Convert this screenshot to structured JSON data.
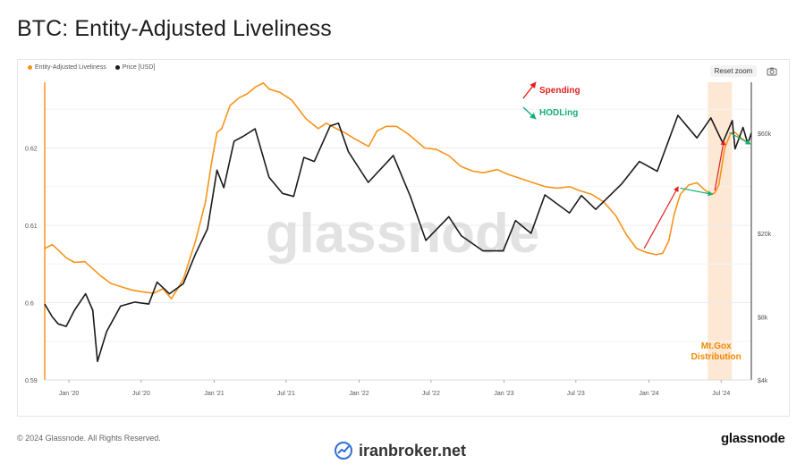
{
  "page": {
    "title": "BTC: Entity-Adjusted Liveliness",
    "footer_copyright": "© 2024 Glassnode. All Rights Reserved.",
    "footer_brand": "glassnode",
    "watermark_text": "glassnode",
    "bottom_logo_text": "iranbroker.net",
    "reset_zoom_label": "Reset zoom"
  },
  "colors": {
    "liveliness": "#f7931a",
    "price": "#1a1a1a",
    "spending": "#e41e1e",
    "hodling": "#13b07a",
    "highlight": "#fde2cc",
    "mtgox": "#f08a00"
  },
  "chart_data": {
    "type": "line",
    "title": "BTC: Entity-Adjusted Liveliness",
    "legend": [
      {
        "name": "Entity-Adjusted Liveliness",
        "color": "#f7931a"
      },
      {
        "name": "Price [USD]",
        "color": "#1a1a1a"
      }
    ],
    "legend_position": "top-left",
    "grid": true,
    "x_ticks": [
      "Jan '20",
      "Jul '20",
      "Jan '21",
      "Jul '21",
      "Jan '22",
      "Jul '22",
      "Jan '23",
      "Jul '23",
      "Jan '24",
      "Jul '24"
    ],
    "x_range": [
      "2019-11-01",
      "2024-09-15"
    ],
    "y_left": {
      "ticks": [
        "0.59",
        "0.6",
        "0.61",
        "0.62"
      ],
      "range": [
        0.59,
        0.6285
      ]
    },
    "y_right": {
      "ticks": [
        "$4k",
        "$8k",
        "$20k",
        "$60k"
      ],
      "scale": "log",
      "range": [
        4000,
        105000
      ]
    },
    "series": [
      {
        "name": "Entity-Adjusted Liveliness",
        "axis": "left",
        "points": [
          [
            "2019-11-01",
            0.607
          ],
          [
            "2019-11-20",
            0.6075
          ],
          [
            "2019-12-05",
            0.6068
          ],
          [
            "2019-12-25",
            0.6058
          ],
          [
            "2020-01-15",
            0.6052
          ],
          [
            "2020-02-10",
            0.6053
          ],
          [
            "2020-03-05",
            0.6042
          ],
          [
            "2020-03-20",
            0.6035
          ],
          [
            "2020-04-15",
            0.6025
          ],
          [
            "2020-05-15",
            0.602
          ],
          [
            "2020-06-10",
            0.6016
          ],
          [
            "2020-07-05",
            0.6014
          ],
          [
            "2020-08-01",
            0.6012
          ],
          [
            "2020-08-25",
            0.6018
          ],
          [
            "2020-09-15",
            0.6005
          ],
          [
            "2020-10-15",
            0.603
          ],
          [
            "2020-11-15",
            0.608
          ],
          [
            "2020-12-10",
            0.613
          ],
          [
            "2020-12-25",
            0.618
          ],
          [
            "2021-01-08",
            0.622
          ],
          [
            "2021-01-20",
            0.6225
          ],
          [
            "2021-02-10",
            0.6255
          ],
          [
            "2021-03-05",
            0.6265
          ],
          [
            "2021-03-25",
            0.627
          ],
          [
            "2021-04-15",
            0.6279
          ],
          [
            "2021-05-05",
            0.6284
          ],
          [
            "2021-05-20",
            0.6276
          ],
          [
            "2021-06-15",
            0.6272
          ],
          [
            "2021-07-15",
            0.6262
          ],
          [
            "2021-08-20",
            0.6238
          ],
          [
            "2021-09-20",
            0.6225
          ],
          [
            "2021-10-10",
            0.6232
          ],
          [
            "2021-11-05",
            0.6225
          ],
          [
            "2021-11-25",
            0.622
          ],
          [
            "2021-12-20",
            0.6212
          ],
          [
            "2022-01-25",
            0.6202
          ],
          [
            "2022-02-15",
            0.6222
          ],
          [
            "2022-03-10",
            0.6228
          ],
          [
            "2022-04-05",
            0.6228
          ],
          [
            "2022-05-05",
            0.6218
          ],
          [
            "2022-06-15",
            0.62
          ],
          [
            "2022-07-15",
            0.6198
          ],
          [
            "2022-08-15",
            0.619
          ],
          [
            "2022-09-15",
            0.6176
          ],
          [
            "2022-10-15",
            0.617
          ],
          [
            "2022-11-10",
            0.6168
          ],
          [
            "2022-12-15",
            0.6172
          ],
          [
            "2023-01-10",
            0.6166
          ],
          [
            "2023-02-15",
            0.616
          ],
          [
            "2023-03-15",
            0.6155
          ],
          [
            "2023-04-15",
            0.615
          ],
          [
            "2023-05-15",
            0.6148
          ],
          [
            "2023-06-15",
            0.615
          ],
          [
            "2023-07-10",
            0.6145
          ],
          [
            "2023-08-10",
            0.614
          ],
          [
            "2023-09-10",
            0.613
          ],
          [
            "2023-10-10",
            0.6112
          ],
          [
            "2023-11-05",
            0.6088
          ],
          [
            "2023-12-01",
            0.607
          ],
          [
            "2023-12-25",
            0.6065
          ],
          [
            "2024-01-20",
            0.6062
          ],
          [
            "2024-02-05",
            0.6064
          ],
          [
            "2024-02-20",
            0.608
          ],
          [
            "2024-03-05",
            0.6115
          ],
          [
            "2024-03-20",
            0.614
          ],
          [
            "2024-04-10",
            0.6152
          ],
          [
            "2024-05-01",
            0.6155
          ],
          [
            "2024-05-20",
            0.6146
          ],
          [
            "2024-06-05",
            0.614
          ],
          [
            "2024-06-15",
            0.6142
          ],
          [
            "2024-06-25",
            0.6152
          ],
          [
            "2024-07-10",
            0.62
          ],
          [
            "2024-07-25",
            0.6219
          ],
          [
            "2024-08-05",
            0.622
          ],
          [
            "2024-08-20",
            0.6213
          ],
          [
            "2024-09-05",
            0.6207
          ],
          [
            "2024-09-15",
            0.6205
          ]
        ]
      },
      {
        "name": "Price [USD]",
        "axis": "right",
        "points": [
          [
            "2019-11-01",
            9200
          ],
          [
            "2019-11-20",
            8000
          ],
          [
            "2019-12-05",
            7400
          ],
          [
            "2019-12-25",
            7200
          ],
          [
            "2020-01-15",
            8600
          ],
          [
            "2020-02-12",
            10300
          ],
          [
            "2020-03-01",
            8600
          ],
          [
            "2020-03-13",
            4900
          ],
          [
            "2020-04-05",
            6800
          ],
          [
            "2020-05-10",
            9000
          ],
          [
            "2020-06-15",
            9400
          ],
          [
            "2020-07-20",
            9200
          ],
          [
            "2020-08-10",
            11700
          ],
          [
            "2020-09-10",
            10300
          ],
          [
            "2020-10-15",
            11500
          ],
          [
            "2020-11-15",
            16000
          ],
          [
            "2020-12-15",
            21000
          ],
          [
            "2021-01-08",
            40000
          ],
          [
            "2021-01-25",
            33000
          ],
          [
            "2021-02-20",
            55000
          ],
          [
            "2021-03-15",
            58000
          ],
          [
            "2021-04-14",
            63000
          ],
          [
            "2021-05-19",
            37000
          ],
          [
            "2021-06-22",
            31000
          ],
          [
            "2021-07-20",
            30000
          ],
          [
            "2021-08-15",
            46000
          ],
          [
            "2021-09-10",
            44000
          ],
          [
            "2021-10-20",
            65000
          ],
          [
            "2021-11-10",
            67000
          ],
          [
            "2021-12-05",
            49000
          ],
          [
            "2022-01-24",
            35000
          ],
          [
            "2022-03-28",
            47000
          ],
          [
            "2022-05-10",
            30000
          ],
          [
            "2022-06-18",
            18500
          ],
          [
            "2022-08-15",
            24000
          ],
          [
            "2022-09-15",
            19500
          ],
          [
            "2022-11-09",
            16500
          ],
          [
            "2022-12-30",
            16500
          ],
          [
            "2023-01-30",
            23000
          ],
          [
            "2023-03-10",
            20000
          ],
          [
            "2023-04-14",
            30500
          ],
          [
            "2023-06-15",
            25000
          ],
          [
            "2023-07-15",
            30300
          ],
          [
            "2023-08-20",
            26000
          ],
          [
            "2023-10-25",
            34500
          ],
          [
            "2023-12-08",
            44000
          ],
          [
            "2024-01-22",
            39500
          ],
          [
            "2024-03-14",
            73000
          ],
          [
            "2024-05-01",
            57000
          ],
          [
            "2024-06-05",
            71000
          ],
          [
            "2024-07-05",
            54000
          ],
          [
            "2024-07-29",
            69000
          ],
          [
            "2024-08-05",
            50500
          ],
          [
            "2024-08-25",
            64000
          ],
          [
            "2024-09-06",
            53500
          ],
          [
            "2024-09-15",
            60000
          ]
        ]
      }
    ],
    "annotations": [
      {
        "text": "Spending",
        "color": "#e41e1e"
      },
      {
        "text": "HODLing",
        "color": "#13b07a"
      },
      {
        "text": "Mt.Gox Distribution",
        "lines": [
          "Mt.Gox",
          "Distribution"
        ],
        "color": "#f08a00",
        "period": [
          "2024-05-28",
          "2024-07-28"
        ]
      }
    ],
    "trend_arrows": [
      {
        "kind": "spending",
        "from": [
          "2023-12-20",
          0.607
        ],
        "to": [
          "2024-03-15",
          0.615
        ]
      },
      {
        "kind": "spending",
        "from": [
          "2024-06-15",
          0.6145
        ],
        "to": [
          "2024-07-08",
          0.621
        ]
      },
      {
        "kind": "hodling",
        "from": [
          "2024-03-20",
          0.6148
        ],
        "to": [
          "2024-06-10",
          0.614
        ]
      },
      {
        "kind": "hodling",
        "from": [
          "2024-07-22",
          0.622
        ],
        "to": [
          "2024-09-13",
          0.6205
        ]
      }
    ]
  }
}
